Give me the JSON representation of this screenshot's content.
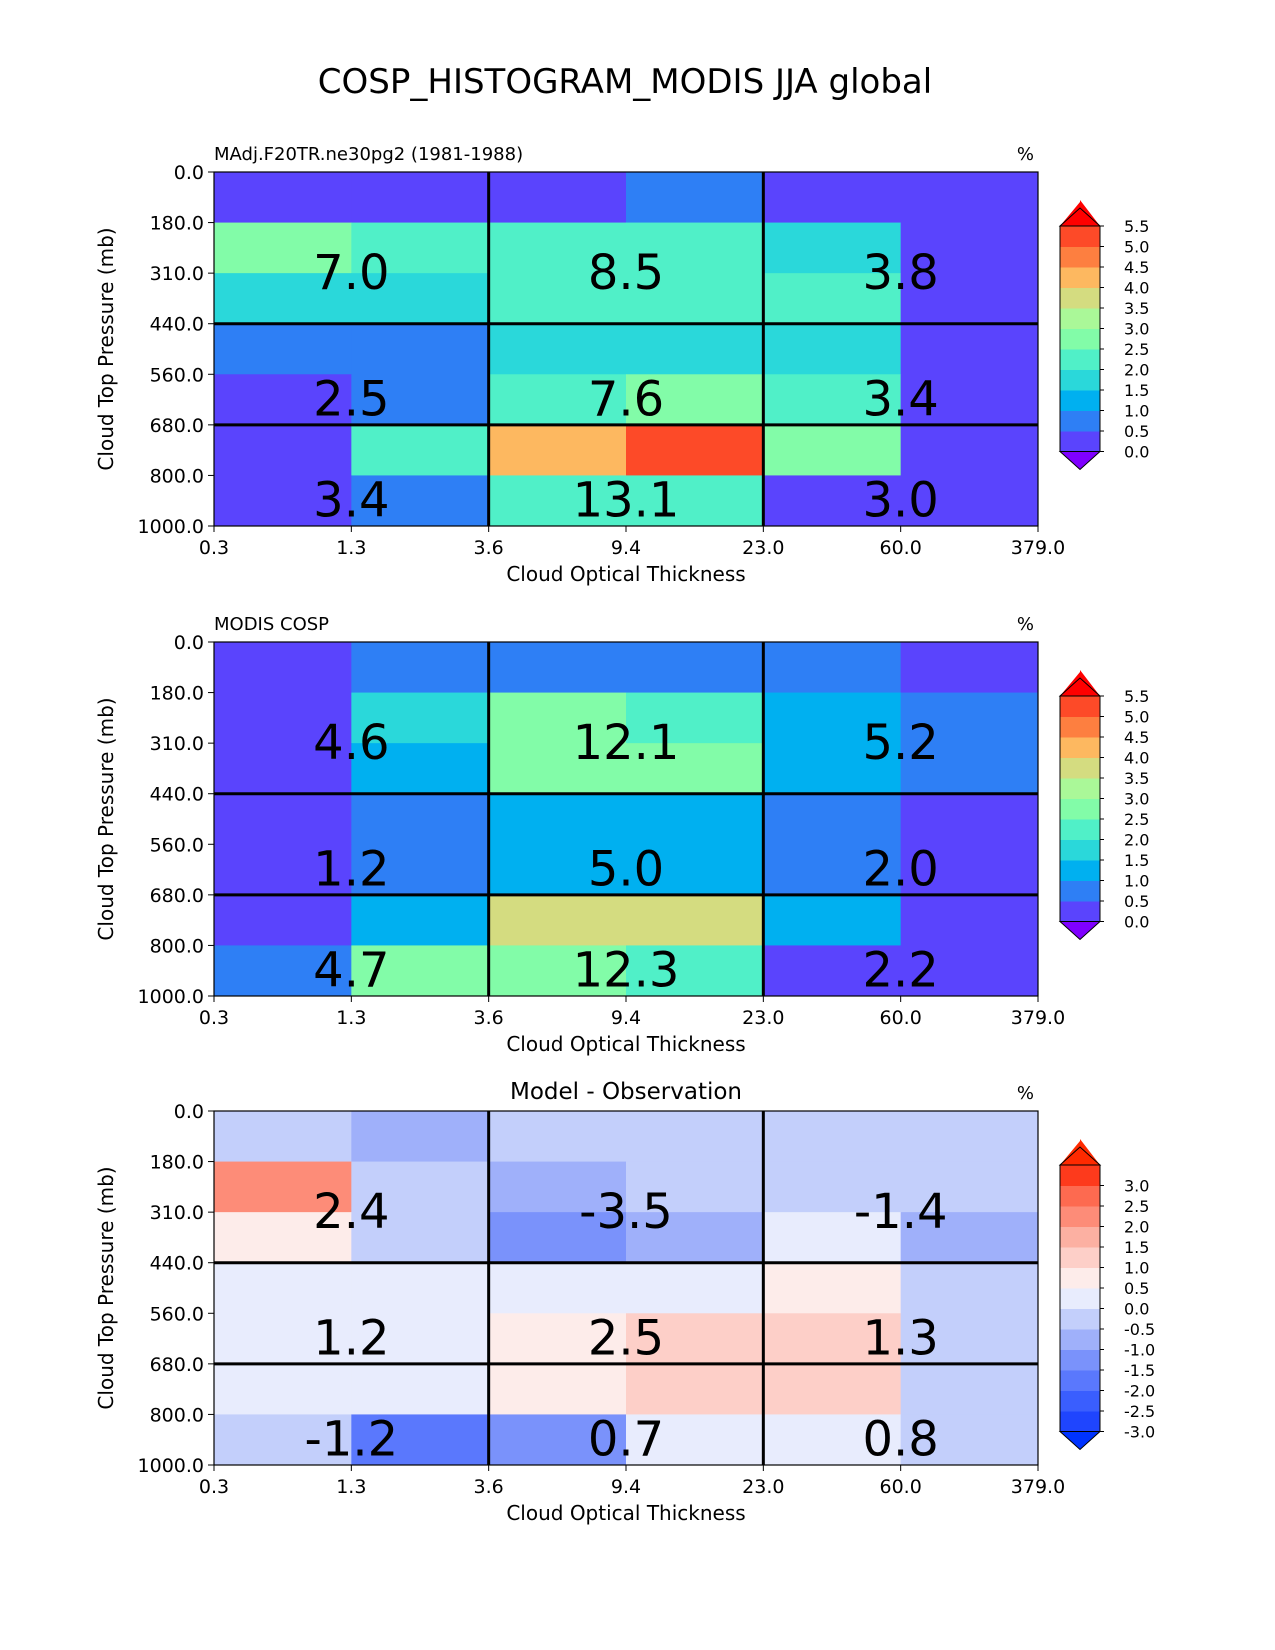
{
  "figure_title": "COSP_HISTOGRAM_MODIS JJA global",
  "chart_data": [
    {
      "type": "heatmap",
      "title_left": "MAdj.F20TR.ne30pg2 (1981-1988)",
      "title_center": "",
      "units": "%",
      "xlabel": "Cloud Optical Thickness",
      "ylabel": "Cloud Top Pressure (mb)",
      "xticks": [
        "0.3",
        "1.3",
        "3.6",
        "9.4",
        "23.0",
        "60.0",
        "379.0"
      ],
      "yticks": [
        "0.0",
        "180.0",
        "310.0",
        "440.0",
        "560.0",
        "680.0",
        "800.0",
        "1000.0"
      ],
      "cells": [
        [
          0.2,
          0.2,
          0.2,
          0.6,
          0.2,
          0.2
        ],
        [
          2.9,
          2.2,
          2.2,
          2.3,
          1.7,
          0.2
        ],
        [
          1.6,
          1.6,
          2.2,
          2.3,
          2.1,
          0.2
        ],
        [
          0.8,
          0.8,
          1.6,
          1.6,
          1.6,
          0.2
        ],
        [
          0.2,
          0.8,
          2.4,
          2.8,
          2.0,
          0.2
        ],
        [
          0.2,
          2.0,
          4.2,
          5.2,
          2.7,
          0.2
        ],
        [
          0.2,
          0.8,
          2.0,
          2.0,
          0.2,
          0.2
        ]
      ],
      "group_values": [
        [
          "7.0",
          "8.5",
          "3.8"
        ],
        [
          "2.5",
          "7.6",
          "3.4"
        ],
        [
          "3.4",
          "13.1",
          "3.0"
        ]
      ],
      "colorbar": {
        "ticks": [
          "0.0",
          "0.5",
          "1.0",
          "1.5",
          "2.0",
          "2.5",
          "3.0",
          "3.5",
          "4.0",
          "4.5",
          "5.0",
          "5.5"
        ],
        "colors": [
          "#5a44fd",
          "#2e7ff5",
          "#00b0f0",
          "#2ad8da",
          "#50f0c8",
          "#82fca8",
          "#aaf898",
          "#d4dc80",
          "#fdb860",
          "#fd7f40",
          "#fd4a28"
        ],
        "under_color": "#7f00ff",
        "over_color": "#ff0000"
      }
    },
    {
      "type": "heatmap",
      "title_left": "MODIS COSP",
      "title_center": "",
      "units": "%",
      "xlabel": "Cloud Optical Thickness",
      "ylabel": "Cloud Top Pressure (mb)",
      "xticks": [
        "0.3",
        "1.3",
        "3.6",
        "9.4",
        "23.0",
        "60.0",
        "379.0"
      ],
      "yticks": [
        "0.0",
        "180.0",
        "310.0",
        "440.0",
        "560.0",
        "680.0",
        "800.0",
        "1000.0"
      ],
      "cells": [
        [
          0.2,
          0.7,
          0.7,
          0.7,
          0.7,
          0.2
        ],
        [
          0.2,
          1.8,
          2.6,
          2.2,
          1.2,
          0.7
        ],
        [
          0.2,
          1.2,
          2.7,
          2.6,
          1.2,
          0.7
        ],
        [
          0.2,
          0.7,
          1.2,
          1.2,
          0.7,
          0.2
        ],
        [
          0.2,
          0.7,
          1.2,
          1.2,
          0.7,
          0.2
        ],
        [
          0.2,
          1.2,
          3.7,
          3.7,
          1.2,
          0.2
        ],
        [
          0.7,
          2.7,
          2.8,
          2.2,
          0.2,
          0.2
        ]
      ],
      "group_values": [
        [
          "4.6",
          "12.1",
          "5.2"
        ],
        [
          "1.2",
          "5.0",
          "2.0"
        ],
        [
          "4.7",
          "12.3",
          "2.2"
        ]
      ],
      "colorbar": {
        "ticks": [
          "0.0",
          "0.5",
          "1.0",
          "1.5",
          "2.0",
          "2.5",
          "3.0",
          "3.5",
          "4.0",
          "4.5",
          "5.0",
          "5.5"
        ],
        "colors": [
          "#5a44fd",
          "#2e7ff5",
          "#00b0f0",
          "#2ad8da",
          "#50f0c8",
          "#82fca8",
          "#aaf898",
          "#d4dc80",
          "#fdb860",
          "#fd7f40",
          "#fd4a28"
        ],
        "under_color": "#7f00ff",
        "over_color": "#ff0000"
      }
    },
    {
      "type": "heatmap",
      "title_left": "",
      "title_center": "Model - Observation",
      "units": "%",
      "xlabel": "Cloud Optical Thickness",
      "ylabel": "Cloud Top Pressure (mb)",
      "xticks": [
        "0.3",
        "1.3",
        "3.6",
        "9.4",
        "23.0",
        "60.0",
        "379.0"
      ],
      "yticks": [
        "0.0",
        "180.0",
        "310.0",
        "440.0",
        "560.0",
        "680.0",
        "800.0",
        "1000.0"
      ],
      "cells": [
        [
          -0.2,
          -0.7,
          -0.2,
          -0.2,
          -0.2,
          -0.2
        ],
        [
          2.2,
          -0.2,
          -0.7,
          -0.2,
          -0.2,
          -0.2
        ],
        [
          0.7,
          -0.2,
          -1.2,
          -0.7,
          0.2,
          -0.7
        ],
        [
          0.2,
          0.2,
          0.2,
          0.2,
          0.7,
          -0.2
        ],
        [
          0.2,
          0.2,
          0.7,
          1.2,
          1.2,
          -0.2
        ],
        [
          0.2,
          0.2,
          0.7,
          1.2,
          1.2,
          -0.2
        ],
        [
          -0.2,
          -1.7,
          -1.2,
          0.2,
          0.2,
          -0.2
        ]
      ],
      "group_values": [
        [
          "2.4",
          "-3.5",
          "-1.4"
        ],
        [
          "1.2",
          "2.5",
          "1.3"
        ],
        [
          "-1.2",
          "0.7",
          "0.8"
        ]
      ],
      "colorbar": {
        "ticks": [
          "-3.0",
          "-2.5",
          "-2.0",
          "-1.5",
          "-1.0",
          "-0.5",
          "0.0",
          "0.5",
          "1.0",
          "1.5",
          "2.0",
          "2.5",
          "3.0"
        ],
        "colors": [
          "#1f45fe",
          "#3a5efe",
          "#5a78fd",
          "#7a92fb",
          "#9fb0fa",
          "#c3cffb",
          "#e8ecfd",
          "#fdecea",
          "#fdcfc8",
          "#fcb0a2",
          "#fd8c78",
          "#fd6a50",
          "#fd3a1c"
        ],
        "under_color": "#0033ff",
        "over_color": "#ff2a00"
      }
    }
  ]
}
